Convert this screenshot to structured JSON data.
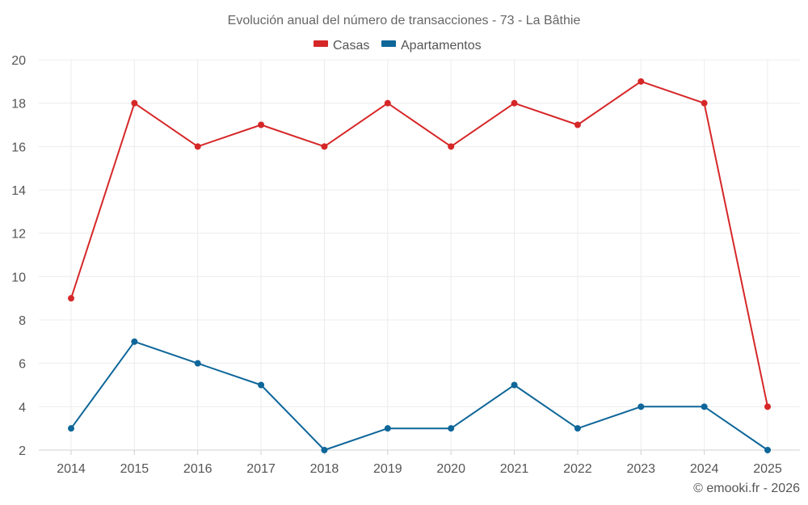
{
  "chart_data": {
    "type": "line",
    "title": "Evolución anual del número de transacciones - 73 - La Bâthie",
    "categories": [
      "2014",
      "2015",
      "2016",
      "2017",
      "2018",
      "2019",
      "2020",
      "2021",
      "2022",
      "2023",
      "2024",
      "2025"
    ],
    "series": [
      {
        "name": "Casas",
        "color": "#d62728",
        "values": [
          9,
          18,
          16,
          17,
          16,
          18,
          16,
          18,
          17,
          19,
          18,
          4
        ]
      },
      {
        "name": "Apartamentos",
        "color": "#0e6699",
        "values": [
          3,
          7,
          6,
          5,
          2,
          3,
          3,
          5,
          3,
          4,
          4,
          2
        ]
      }
    ],
    "ylim": [
      2,
      20
    ],
    "yticks": [
      "2",
      "4",
      "6",
      "8",
      "10",
      "12",
      "14",
      "16",
      "18",
      "20"
    ],
    "grid": true,
    "legend": "top-center",
    "credit": "© emooki.fr - 2026"
  }
}
